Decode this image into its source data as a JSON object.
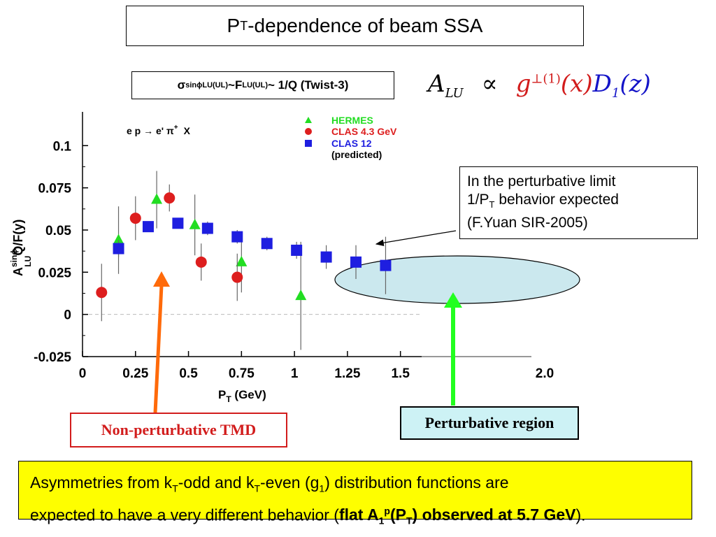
{
  "slide": {
    "title_main": "P",
    "title_sub": "T",
    "title_rest": "-dependence of beam SSA",
    "formula": {
      "sigma": "σ",
      "sigma_sup": "sinϕ",
      "sigma_sub": "LU(UL)",
      "sep1": " ~",
      "F": "F",
      "F_sub": "LU(UL)",
      "rest": "~ 1/Q (Twist-3)"
    },
    "alu": {
      "A": "A",
      "A_sub": "LU",
      "prop": "∝",
      "g": "g",
      "g_sup": "⊥(1)",
      "gx": "(x)",
      "D": "D",
      "D_sub": "1",
      "Dz": "(z)"
    },
    "limit_note": {
      "line1": "In the perturbative limit",
      "line2_a": "1/P",
      "line2_sub": "T",
      "line2_b": " behavior expected",
      "line3": "(F.Yuan SIR-2005)"
    },
    "nonpert_label": "Non-perturbative TMD",
    "pert_label": "Perturbative region",
    "bottom": {
      "t1": "Asymmetries from k",
      "t1_sub": "T",
      "t2": "-odd  and k",
      "t2_sub": "T",
      "t3": "-even (g",
      "t3_sub": "1",
      "t4": ") distribution functions are",
      "t5": "expected to have a very different behavior (",
      "t6": "flat A",
      "t6_sub": "1",
      "t6_sup": "p",
      "t7": "(P",
      "t7_sub": "T",
      "t8": ") observed at 5.7 GeV",
      "t9": ")."
    }
  },
  "chart_data": {
    "type": "scatter",
    "reaction": "e p → e' π",
    "reaction_sup": "+",
    "reaction_end": "X",
    "xlabel": "P",
    "xlabel_sub": "T",
    "xlabel_unit": " (GeV)",
    "ylabel": "A",
    "ylabel_sup": "sinϕ",
    "ylabel_sub": "LU",
    "ylabel_rest": "Q/F(y)",
    "xlim": [
      0,
      1.6
    ],
    "ylim": [
      -0.025,
      0.12
    ],
    "x_ticks": [
      "0",
      "0.25",
      "0.5",
      "0.75",
      "1",
      "1.25",
      "1.5"
    ],
    "y_ticks": [
      "-0.025",
      "0",
      "0.025",
      "0.05",
      "0.075",
      "0.1"
    ],
    "extra_x_tick_label": "2.0",
    "zero_line": "dashed",
    "legend_position": "top-right",
    "series": [
      {
        "name": "HERMES",
        "marker": "triangle",
        "color": "#22dd22",
        "points": [
          {
            "x": 0.17,
            "y": 0.044,
            "err": 0.02
          },
          {
            "x": 0.35,
            "y": 0.068,
            "err": 0.017
          },
          {
            "x": 0.53,
            "y": 0.053,
            "err": 0.018
          },
          {
            "x": 0.75,
            "y": 0.031,
            "err": 0.018
          },
          {
            "x": 1.03,
            "y": 0.011,
            "err": 0.032
          }
        ]
      },
      {
        "name": "CLAS 4.3 GeV",
        "marker": "circle",
        "color": "#dd1e1e",
        "points": [
          {
            "x": 0.09,
            "y": 0.013,
            "err": 0.017
          },
          {
            "x": 0.25,
            "y": 0.057,
            "err": 0.013
          },
          {
            "x": 0.41,
            "y": 0.069,
            "err": 0.008
          },
          {
            "x": 0.56,
            "y": 0.031,
            "err": 0.011
          },
          {
            "x": 0.73,
            "y": 0.022,
            "err": 0.014
          }
        ]
      },
      {
        "name": "CLAS 12",
        "name2": "(predicted)",
        "marker": "square",
        "color": "#1e1ee0",
        "points": [
          {
            "x": 0.17,
            "y": 0.039,
            "err": 0.005
          },
          {
            "x": 0.31,
            "y": 0.052,
            "err": 0.003
          },
          {
            "x": 0.45,
            "y": 0.054,
            "err": 0.003
          },
          {
            "x": 0.59,
            "y": 0.051,
            "err": 0.004
          },
          {
            "x": 0.73,
            "y": 0.046,
            "err": 0.004
          },
          {
            "x": 0.87,
            "y": 0.042,
            "err": 0.004
          },
          {
            "x": 1.01,
            "y": 0.038,
            "err": 0.005
          },
          {
            "x": 1.15,
            "y": 0.034,
            "err": 0.007
          },
          {
            "x": 1.29,
            "y": 0.031,
            "err": 0.01
          },
          {
            "x": 1.43,
            "y": 0.029,
            "err": 0.017
          }
        ]
      }
    ]
  }
}
